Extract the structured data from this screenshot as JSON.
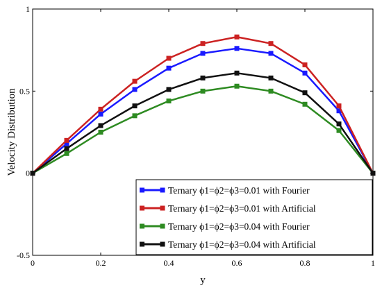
{
  "chart_data": {
    "type": "line",
    "title": "",
    "xlabel": "y",
    "ylabel": "Velocity  Distribution",
    "xlim": [
      0,
      1
    ],
    "ylim": [
      -0.5,
      1
    ],
    "xticks": [
      0,
      0.2,
      0.4,
      0.6,
      0.8,
      1
    ],
    "xtick_labels": [
      "0",
      "0.2",
      "0.4",
      "0.6",
      "0.8",
      "1"
    ],
    "yticks": [
      -0.5,
      0,
      0.5,
      1
    ],
    "ytick_labels": [
      "-0.5",
      "0",
      "0.5",
      "1"
    ],
    "grid": false,
    "legend_position": "bottom-right",
    "x": [
      0,
      0.1,
      0.2,
      0.3,
      0.4,
      0.5,
      0.6,
      0.7,
      0.8,
      0.9,
      1.0
    ],
    "series": [
      {
        "name": "Ternary ϕ1=ϕ2=ϕ3=0.01 with Fourier",
        "color": "#1a1aff",
        "values": [
          0,
          0.18,
          0.36,
          0.51,
          0.64,
          0.73,
          0.76,
          0.73,
          0.61,
          0.38,
          0
        ]
      },
      {
        "name": "Ternary ϕ1=ϕ2=ϕ3=0.01 with Artificial",
        "color": "#cc2222",
        "values": [
          0,
          0.2,
          0.39,
          0.56,
          0.7,
          0.79,
          0.83,
          0.79,
          0.66,
          0.41,
          0
        ]
      },
      {
        "name": "Ternary ϕ1=ϕ2=ϕ3=0.04 with Fourier",
        "color": "#2e8b22",
        "values": [
          0,
          0.12,
          0.25,
          0.35,
          0.44,
          0.5,
          0.53,
          0.5,
          0.42,
          0.26,
          0
        ]
      },
      {
        "name": "Ternary ϕ1=ϕ2=ϕ3=0.04 with Artificial",
        "color": "#111111",
        "values": [
          0,
          0.15,
          0.29,
          0.41,
          0.51,
          0.58,
          0.61,
          0.58,
          0.49,
          0.3,
          0
        ]
      }
    ]
  }
}
